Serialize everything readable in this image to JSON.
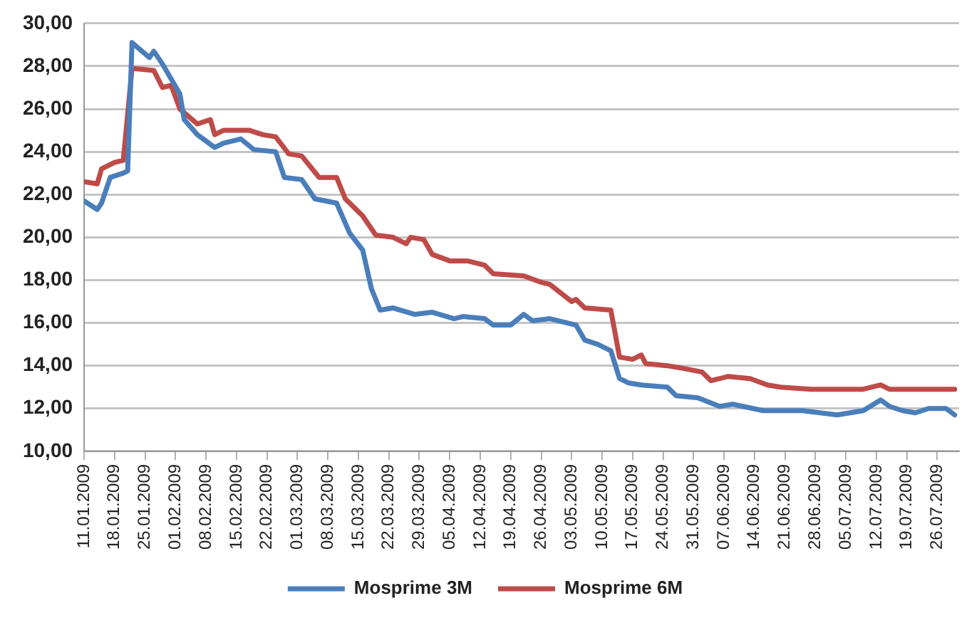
{
  "chart_data": {
    "type": "line",
    "xlim": [
      "2009-01-11",
      "2009-07-31"
    ],
    "xticks": [
      {
        "value": "2009-01-11",
        "label": "11.01.2009"
      },
      {
        "value": "2009-01-18",
        "label": "18.01.2009"
      },
      {
        "value": "2009-01-25",
        "label": "25.01.2009"
      },
      {
        "value": "2009-02-01",
        "label": "01.02.2009"
      },
      {
        "value": "2009-02-08",
        "label": "08.02.2009"
      },
      {
        "value": "2009-02-15",
        "label": "15.02.2009"
      },
      {
        "value": "2009-02-22",
        "label": "22.02.2009"
      },
      {
        "value": "2009-03-01",
        "label": "01.03.2009"
      },
      {
        "value": "2009-03-08",
        "label": "08.03.2009"
      },
      {
        "value": "2009-03-15",
        "label": "15.03.2009"
      },
      {
        "value": "2009-03-22",
        "label": "22.03.2009"
      },
      {
        "value": "2009-03-29",
        "label": "29.03.2009"
      },
      {
        "value": "2009-04-05",
        "label": "05.04.2009"
      },
      {
        "value": "2009-04-12",
        "label": "12.04.2009"
      },
      {
        "value": "2009-04-19",
        "label": "19.04.2009"
      },
      {
        "value": "2009-04-26",
        "label": "26.04.2009"
      },
      {
        "value": "2009-05-03",
        "label": "03.05.2009"
      },
      {
        "value": "2009-05-10",
        "label": "10.05.2009"
      },
      {
        "value": "2009-05-17",
        "label": "17.05.2009"
      },
      {
        "value": "2009-05-24",
        "label": "24.05.2009"
      },
      {
        "value": "2009-05-31",
        "label": "31.05.2009"
      },
      {
        "value": "2009-06-07",
        "label": "07.06.2009"
      },
      {
        "value": "2009-06-14",
        "label": "14.06.2009"
      },
      {
        "value": "2009-06-21",
        "label": "21.06.2009"
      },
      {
        "value": "2009-06-28",
        "label": "28.06.2009"
      },
      {
        "value": "2009-07-05",
        "label": "05.07.2009"
      },
      {
        "value": "2009-07-12",
        "label": "12.07.2009"
      },
      {
        "value": "2009-07-19",
        "label": "19.07.2009"
      },
      {
        "value": "2009-07-26",
        "label": "26.07.2009"
      }
    ],
    "ylim": [
      10,
      30
    ],
    "yticks": [
      {
        "value": 10,
        "label": "10,00"
      },
      {
        "value": 12,
        "label": "12,00"
      },
      {
        "value": 14,
        "label": "14,00"
      },
      {
        "value": 16,
        "label": "16,00"
      },
      {
        "value": 18,
        "label": "18,00"
      },
      {
        "value": 20,
        "label": "20,00"
      },
      {
        "value": 22,
        "label": "22,00"
      },
      {
        "value": 24,
        "label": "24,00"
      },
      {
        "value": 26,
        "label": "26,00"
      },
      {
        "value": 28,
        "label": "28,00"
      },
      {
        "value": 30,
        "label": "30,00"
      }
    ],
    "grid": "y",
    "legend": "bottom",
    "marker": "none",
    "series": [
      {
        "name": "Mosprime 3M",
        "color": "#4a7ebb",
        "x": [
          "2009-01-11",
          "2009-01-14",
          "2009-01-15",
          "2009-01-17",
          "2009-01-20",
          "2009-01-21",
          "2009-01-22",
          "2009-01-26",
          "2009-01-27",
          "2009-01-29",
          "2009-02-02",
          "2009-02-03",
          "2009-02-06",
          "2009-02-10",
          "2009-02-12",
          "2009-02-16",
          "2009-02-19",
          "2009-02-24",
          "2009-02-26",
          "2009-03-02",
          "2009-03-05",
          "2009-03-10",
          "2009-03-13",
          "2009-03-16",
          "2009-03-18",
          "2009-03-20",
          "2009-03-23",
          "2009-03-28",
          "2009-04-01",
          "2009-04-06",
          "2009-04-08",
          "2009-04-13",
          "2009-04-15",
          "2009-04-19",
          "2009-04-22",
          "2009-04-24",
          "2009-04-28",
          "2009-05-04",
          "2009-05-06",
          "2009-05-09",
          "2009-05-12",
          "2009-05-14",
          "2009-05-16",
          "2009-05-19",
          "2009-05-25",
          "2009-05-27",
          "2009-06-01",
          "2009-06-06",
          "2009-06-09",
          "2009-06-16",
          "2009-06-25",
          "2009-07-03",
          "2009-07-09",
          "2009-07-13",
          "2009-07-15",
          "2009-07-18",
          "2009-07-21",
          "2009-07-24",
          "2009-07-28",
          "2009-07-30"
        ],
        "values": [
          21.7,
          21.3,
          21.6,
          22.8,
          23.0,
          23.1,
          29.1,
          28.4,
          28.7,
          28.1,
          26.7,
          25.5,
          24.8,
          24.2,
          24.4,
          24.6,
          24.1,
          24.0,
          22.8,
          22.7,
          21.8,
          21.6,
          20.2,
          19.4,
          17.6,
          16.6,
          16.7,
          16.4,
          16.5,
          16.2,
          16.3,
          16.2,
          15.9,
          15.9,
          16.4,
          16.1,
          16.2,
          15.9,
          15.2,
          15.0,
          14.7,
          13.4,
          13.2,
          13.1,
          13.0,
          12.6,
          12.5,
          12.1,
          12.2,
          11.9,
          11.9,
          11.7,
          11.9,
          12.4,
          12.1,
          11.9,
          11.8,
          12.0,
          12.0,
          11.7
        ]
      },
      {
        "name": "Mosprime 6M",
        "color": "#be4b48",
        "x": [
          "2009-01-11",
          "2009-01-14",
          "2009-01-15",
          "2009-01-18",
          "2009-01-20",
          "2009-01-22",
          "2009-01-27",
          "2009-01-29",
          "2009-01-31",
          "2009-02-02",
          "2009-02-06",
          "2009-02-09",
          "2009-02-10",
          "2009-02-12",
          "2009-02-18",
          "2009-02-21",
          "2009-02-24",
          "2009-02-27",
          "2009-03-02",
          "2009-03-06",
          "2009-03-10",
          "2009-03-12",
          "2009-03-16",
          "2009-03-19",
          "2009-03-23",
          "2009-03-26",
          "2009-03-27",
          "2009-03-30",
          "2009-04-01",
          "2009-04-05",
          "2009-04-09",
          "2009-04-13",
          "2009-04-15",
          "2009-04-22",
          "2009-04-26",
          "2009-04-28",
          "2009-05-03",
          "2009-05-04",
          "2009-05-06",
          "2009-05-12",
          "2009-05-14",
          "2009-05-17",
          "2009-05-19",
          "2009-05-20",
          "2009-05-25",
          "2009-05-28",
          "2009-06-02",
          "2009-06-04",
          "2009-06-08",
          "2009-06-13",
          "2009-06-17",
          "2009-06-20",
          "2009-06-27",
          "2009-07-09",
          "2009-07-13",
          "2009-07-15",
          "2009-07-30"
        ],
        "values": [
          22.6,
          22.5,
          23.2,
          23.5,
          23.6,
          27.9,
          27.8,
          27.0,
          27.1,
          26.0,
          25.3,
          25.5,
          24.8,
          25.0,
          25.0,
          24.8,
          24.7,
          23.9,
          23.8,
          22.8,
          22.8,
          21.8,
          21.0,
          20.1,
          20.0,
          19.7,
          20.0,
          19.9,
          19.2,
          18.9,
          18.9,
          18.7,
          18.3,
          18.2,
          17.9,
          17.8,
          17.0,
          17.1,
          16.7,
          16.6,
          14.4,
          14.3,
          14.5,
          14.1,
          14.0,
          13.9,
          13.7,
          13.3,
          13.5,
          13.4,
          13.1,
          13.0,
          12.9,
          12.9,
          13.1,
          12.9,
          12.9
        ]
      }
    ]
  }
}
